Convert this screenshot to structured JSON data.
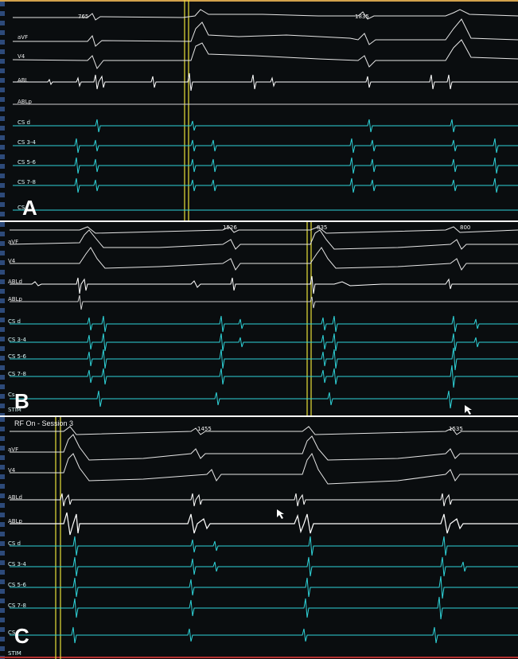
{
  "panels": [
    {
      "letter": "A",
      "values": [
        "765",
        "1835"
      ],
      "channels": [
        "",
        "aVF",
        "V4",
        "ABL",
        "ABLp",
        "CS d",
        "CS 3-4",
        "CS 5-6",
        "CS 7-8",
        "CS"
      ]
    },
    {
      "letter": "B",
      "values": [
        "1526",
        "835",
        "800"
      ],
      "channels": [
        "aVF",
        "V4",
        "ABLd",
        "ABLp",
        "CS d",
        "CS 3-4",
        "CS 5-6",
        "CS 7-8",
        "Cs",
        "STIM"
      ]
    },
    {
      "letter": "C",
      "session": "RF On - Session 3",
      "values": [
        "1455",
        "1535"
      ],
      "channels": [
        "aVF",
        "V4",
        "ABLd",
        "ABLp",
        "CS d",
        "CS 3-4",
        "CS 5-6",
        "CS 7-8",
        "CS",
        "STIM"
      ]
    }
  ],
  "colors": {
    "background": "#0a0d0f",
    "surface_trace": "#e6e6e6",
    "cs_trace": "#2fd3d8",
    "marker": "#e8e23a"
  }
}
